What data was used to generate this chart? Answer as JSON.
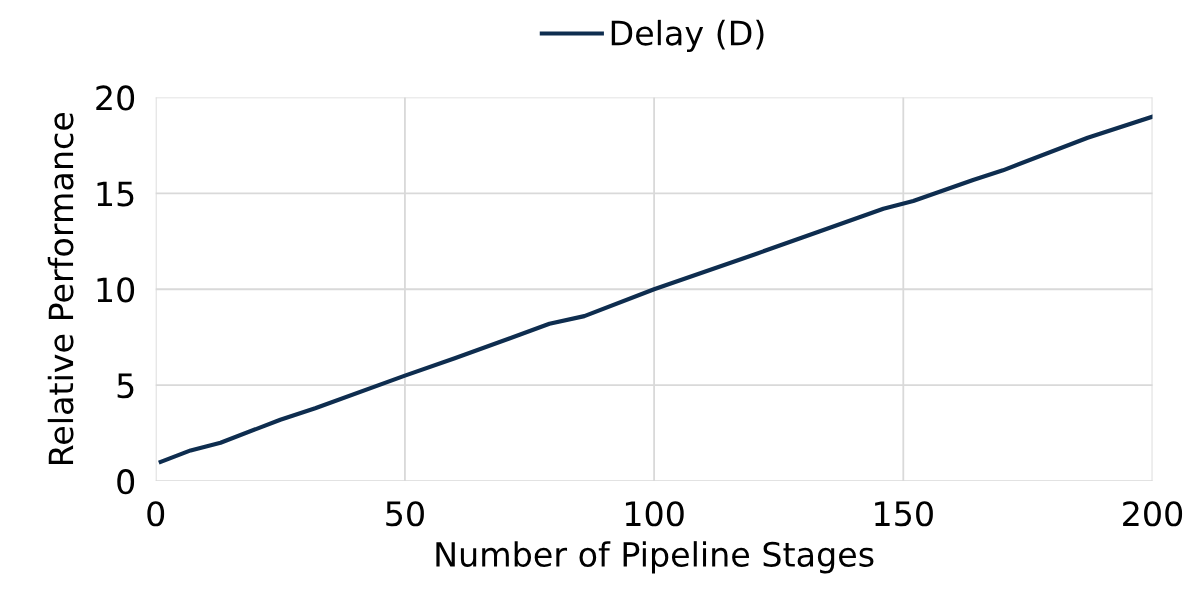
{
  "chart_data": {
    "type": "line",
    "xlabel": "Number of Pipeline Stages",
    "ylabel": "Relative Performance",
    "series": [
      {
        "name": "Delay (D)",
        "color": "#0e2d4f",
        "x": [
          1,
          7,
          13,
          25,
          32,
          50,
          60,
          79,
          86,
          100,
          110,
          120,
          133,
          146,
          152,
          164,
          170,
          187,
          200
        ],
        "values": [
          1,
          1.6,
          2.0,
          3.2,
          3.8,
          5.5,
          6.4,
          8.2,
          8.6,
          10,
          10.9,
          11.8,
          13.0,
          14.2,
          14.6,
          15.7,
          16.2,
          17.9,
          19.0
        ]
      }
    ],
    "xlim": [
      0,
      200
    ],
    "xticks": [
      0,
      50,
      100,
      150,
      200
    ],
    "ylim": [
      0,
      20
    ],
    "yticks": [
      0,
      5,
      10,
      15,
      20
    ],
    "grid": true,
    "legend": "top",
    "marker": "none",
    "line_style": "solid"
  }
}
